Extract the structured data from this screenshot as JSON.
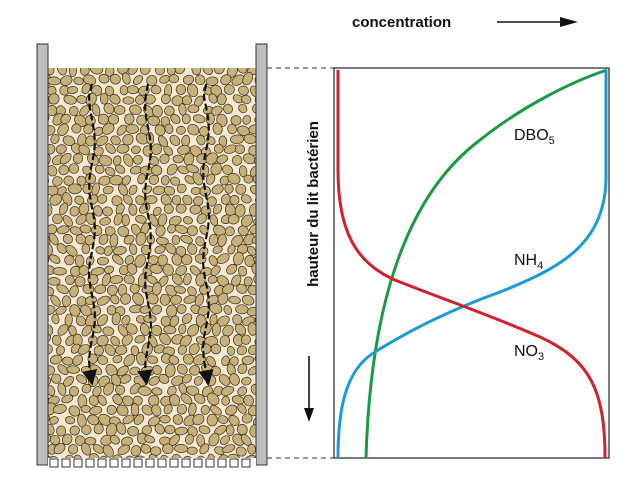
{
  "labels": {
    "x_axis": "concentration",
    "y_axis": "hauteur du lit bactérien"
  },
  "curves": [
    {
      "id": "dbo5",
      "base": "DBO",
      "sub": "5",
      "color": "#1a9a45"
    },
    {
      "id": "nh4",
      "base": "NH",
      "sub": "4",
      "color": "#1a9ad6"
    },
    {
      "id": "no3",
      "base": "NO",
      "sub": "3",
      "color": "#d4202a"
    }
  ],
  "colors": {
    "gravel_fill": "#c8b07a",
    "gravel_stroke": "#3a2e1a",
    "wall_fill": "#bdbdbd",
    "wall_stroke": "#333333",
    "flow_arrow": "#111111"
  }
}
